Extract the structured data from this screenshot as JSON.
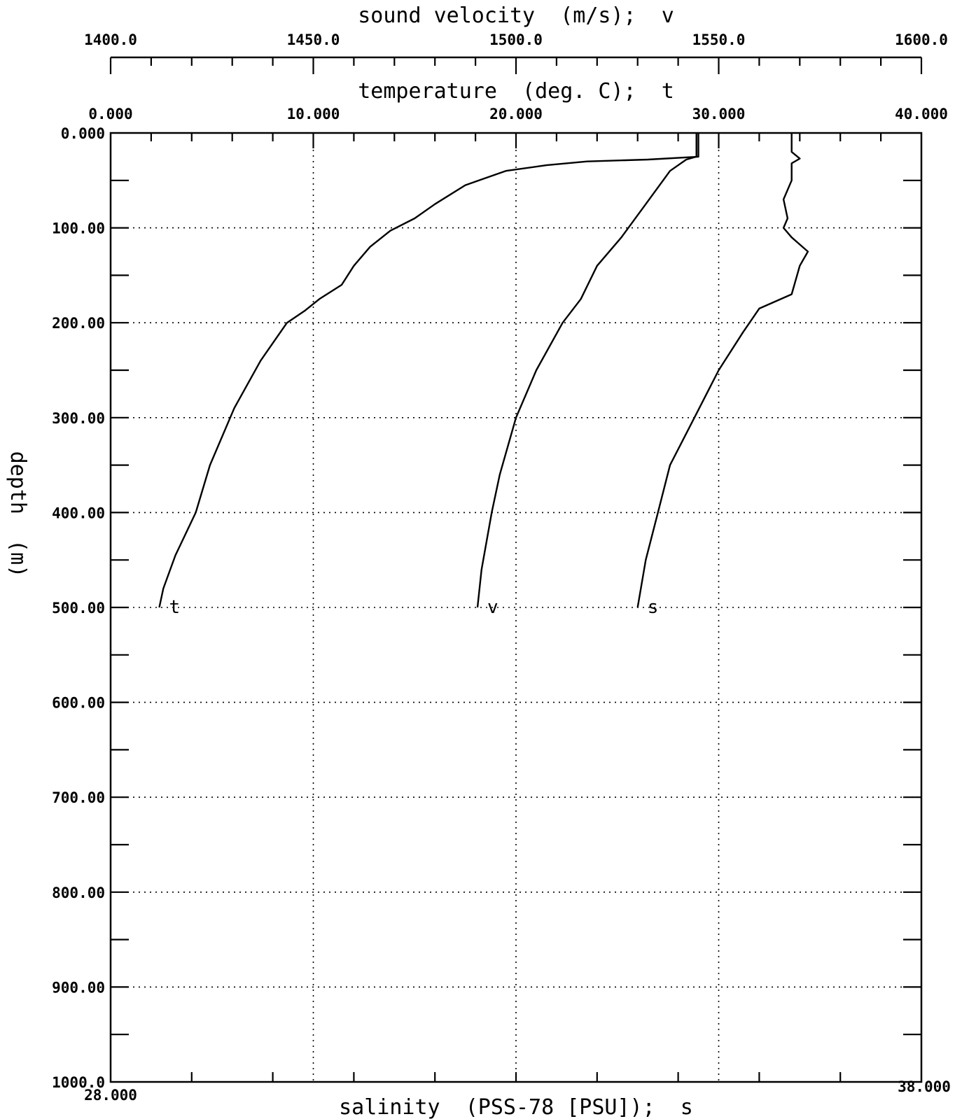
{
  "chart_data": {
    "type": "line",
    "axes": {
      "velocity": {
        "title": "sound velocity  (m/s);  v",
        "range": [
          1400.0,
          1600.0
        ],
        "tick_labels": [
          "1400.0",
          "1450.0",
          "1500.0",
          "1550.0",
          "1600.0"
        ]
      },
      "temperature": {
        "title": "temperature  (deg. C);  t",
        "range": [
          0.0,
          40.0
        ],
        "tick_labels": [
          "0.000",
          "10.000",
          "20.000",
          "30.000",
          "40.000"
        ]
      },
      "salinity": {
        "title": "salinity  (PSS-78 [PSU]);  s",
        "range": [
          28.0,
          38.0
        ],
        "tick_labels": [
          "28.000",
          "38.000"
        ]
      },
      "depth": {
        "title": "depth  (m)",
        "range": [
          0,
          1000
        ],
        "reversed": true,
        "tick_labels": [
          "0.000",
          "100.00",
          "200.00",
          "300.00",
          "400.00",
          "500.00",
          "600.00",
          "700.00",
          "800.00",
          "900.00",
          "1000.0"
        ]
      }
    },
    "grid": true,
    "series": [
      {
        "name": "t",
        "axis": "temperature",
        "points": [
          [
            29.0,
            0
          ],
          [
            29.0,
            25
          ],
          [
            26.5,
            28
          ],
          [
            23.5,
            30
          ],
          [
            21.5,
            34
          ],
          [
            19.5,
            40
          ],
          [
            17.5,
            55
          ],
          [
            16.0,
            75
          ],
          [
            15.0,
            90
          ],
          [
            13.8,
            103
          ],
          [
            12.8,
            120
          ],
          [
            12.0,
            140
          ],
          [
            11.4,
            160
          ],
          [
            10.3,
            175
          ],
          [
            9.6,
            187
          ],
          [
            8.7,
            200
          ],
          [
            7.4,
            240
          ],
          [
            6.1,
            290
          ],
          [
            4.9,
            350
          ],
          [
            4.2,
            400
          ],
          [
            3.2,
            445
          ],
          [
            2.6,
            480
          ],
          [
            2.4,
            500
          ]
        ]
      },
      {
        "name": "v",
        "axis": "velocity",
        "points": [
          [
            1544.5,
            0
          ],
          [
            1544.5,
            25
          ],
          [
            1542.0,
            28
          ],
          [
            1538.0,
            40
          ],
          [
            1532.0,
            75
          ],
          [
            1526.0,
            110
          ],
          [
            1520.0,
            140
          ],
          [
            1516.0,
            175
          ],
          [
            1511.5,
            200
          ],
          [
            1505.0,
            250
          ],
          [
            1500.0,
            300
          ],
          [
            1496.0,
            360
          ],
          [
            1494.0,
            400
          ],
          [
            1491.5,
            460
          ],
          [
            1490.5,
            500
          ]
        ]
      },
      {
        "name": "s",
        "axis": "salinity",
        "points": [
          [
            36.4,
            0
          ],
          [
            36.4,
            20
          ],
          [
            36.5,
            27
          ],
          [
            36.4,
            32
          ],
          [
            36.4,
            50
          ],
          [
            36.3,
            70
          ],
          [
            36.35,
            90
          ],
          [
            36.3,
            100
          ],
          [
            36.4,
            110
          ],
          [
            36.6,
            125
          ],
          [
            36.5,
            140
          ],
          [
            36.4,
            170
          ],
          [
            36.0,
            185
          ],
          [
            35.8,
            210
          ],
          [
            35.5,
            250
          ],
          [
            35.2,
            300
          ],
          [
            34.9,
            350
          ],
          [
            34.75,
            400
          ],
          [
            34.6,
            450
          ],
          [
            34.5,
            500
          ]
        ]
      }
    ],
    "curve_labels": [
      "t",
      "v",
      "s"
    ]
  }
}
